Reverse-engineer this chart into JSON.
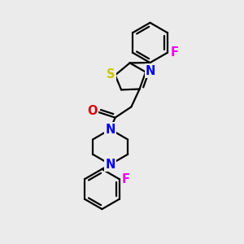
{
  "background_color": "#ebebeb",
  "atom_colors": {
    "S": "#c8c800",
    "N": "#0000ee",
    "O": "#dd0000",
    "F": "#ee00ee",
    "C": "#000000"
  },
  "bond_color": "#000000",
  "bond_width": 1.6,
  "font_size": 10.5
}
